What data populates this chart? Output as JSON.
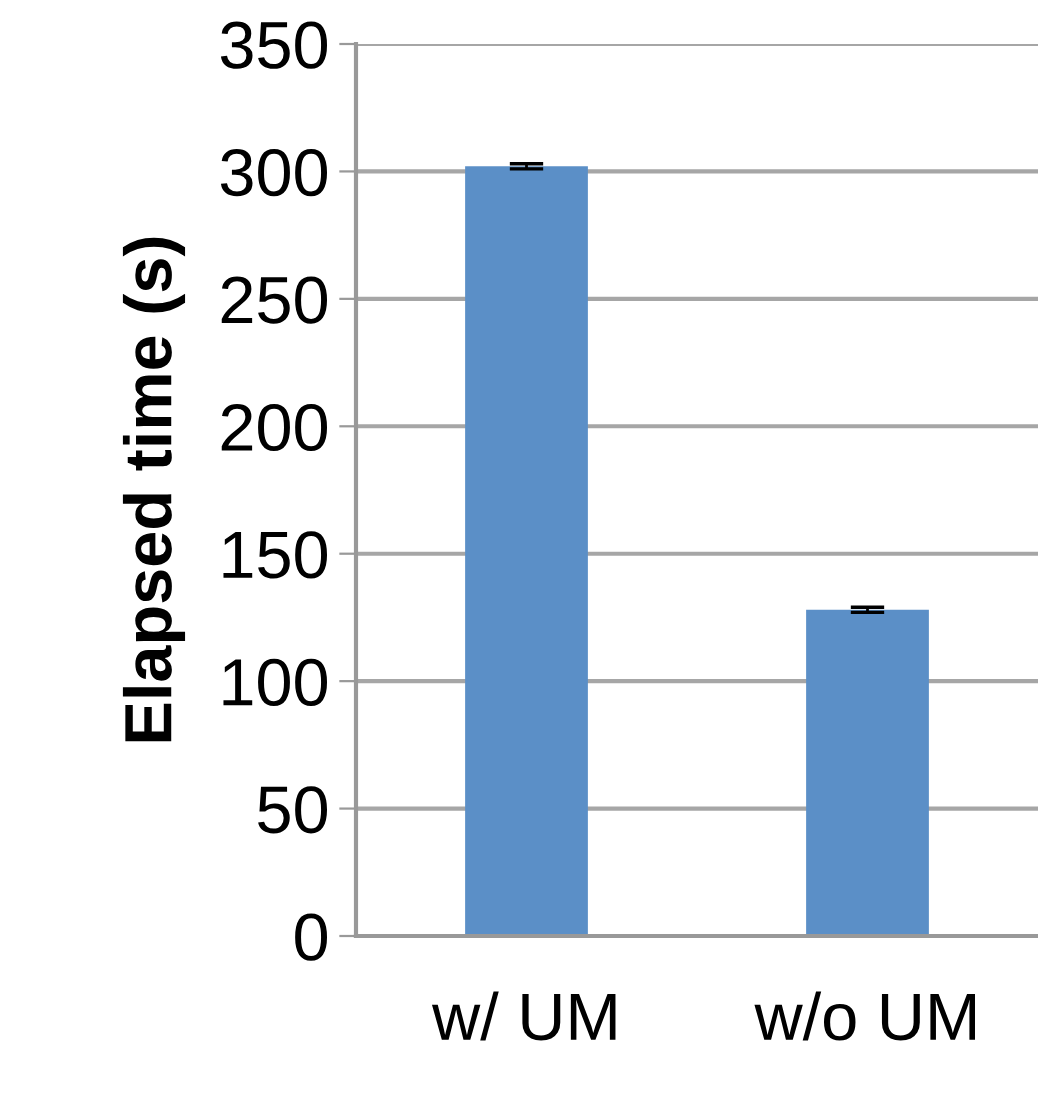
{
  "chart_data": {
    "type": "bar",
    "ylabel": "Elapsed time (s)",
    "categories": [
      "w/ UM",
      "w/o UM"
    ],
    "values": [
      302,
      128
    ],
    "errors": [
      1,
      1
    ],
    "color": "#5b8fc7",
    "ylim": [
      0,
      350
    ],
    "yticks": [
      0,
      50,
      100,
      150,
      200,
      250,
      300,
      350
    ],
    "grid": "y"
  }
}
